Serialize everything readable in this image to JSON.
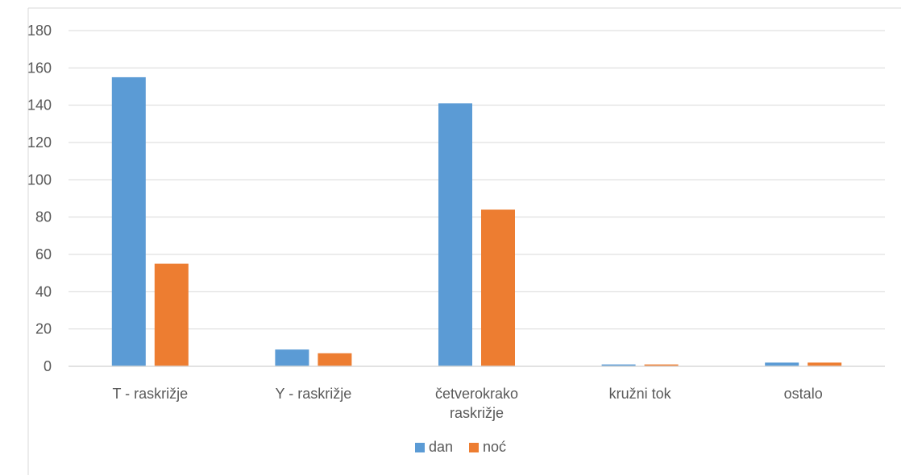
{
  "chart_data": {
    "type": "bar",
    "title": "",
    "xlabel": "",
    "ylabel": "",
    "ylim": [
      0,
      180
    ],
    "yticks": [
      0,
      20,
      40,
      60,
      80,
      100,
      120,
      140,
      160,
      180
    ],
    "grid": true,
    "legend_position": "bottom",
    "categories": [
      [
        "T - raskrižje"
      ],
      [
        "Y - raskrižje"
      ],
      [
        "četverokrako",
        "raskrižje"
      ],
      [
        "kružni tok"
      ],
      [
        "ostalo"
      ]
    ],
    "series": [
      {
        "name": "dan",
        "color": "#5B9BD5",
        "values": [
          155,
          9,
          141,
          1,
          2
        ]
      },
      {
        "name": "noć",
        "color": "#ED7D31",
        "values": [
          55,
          7,
          84,
          1,
          2
        ]
      }
    ]
  }
}
